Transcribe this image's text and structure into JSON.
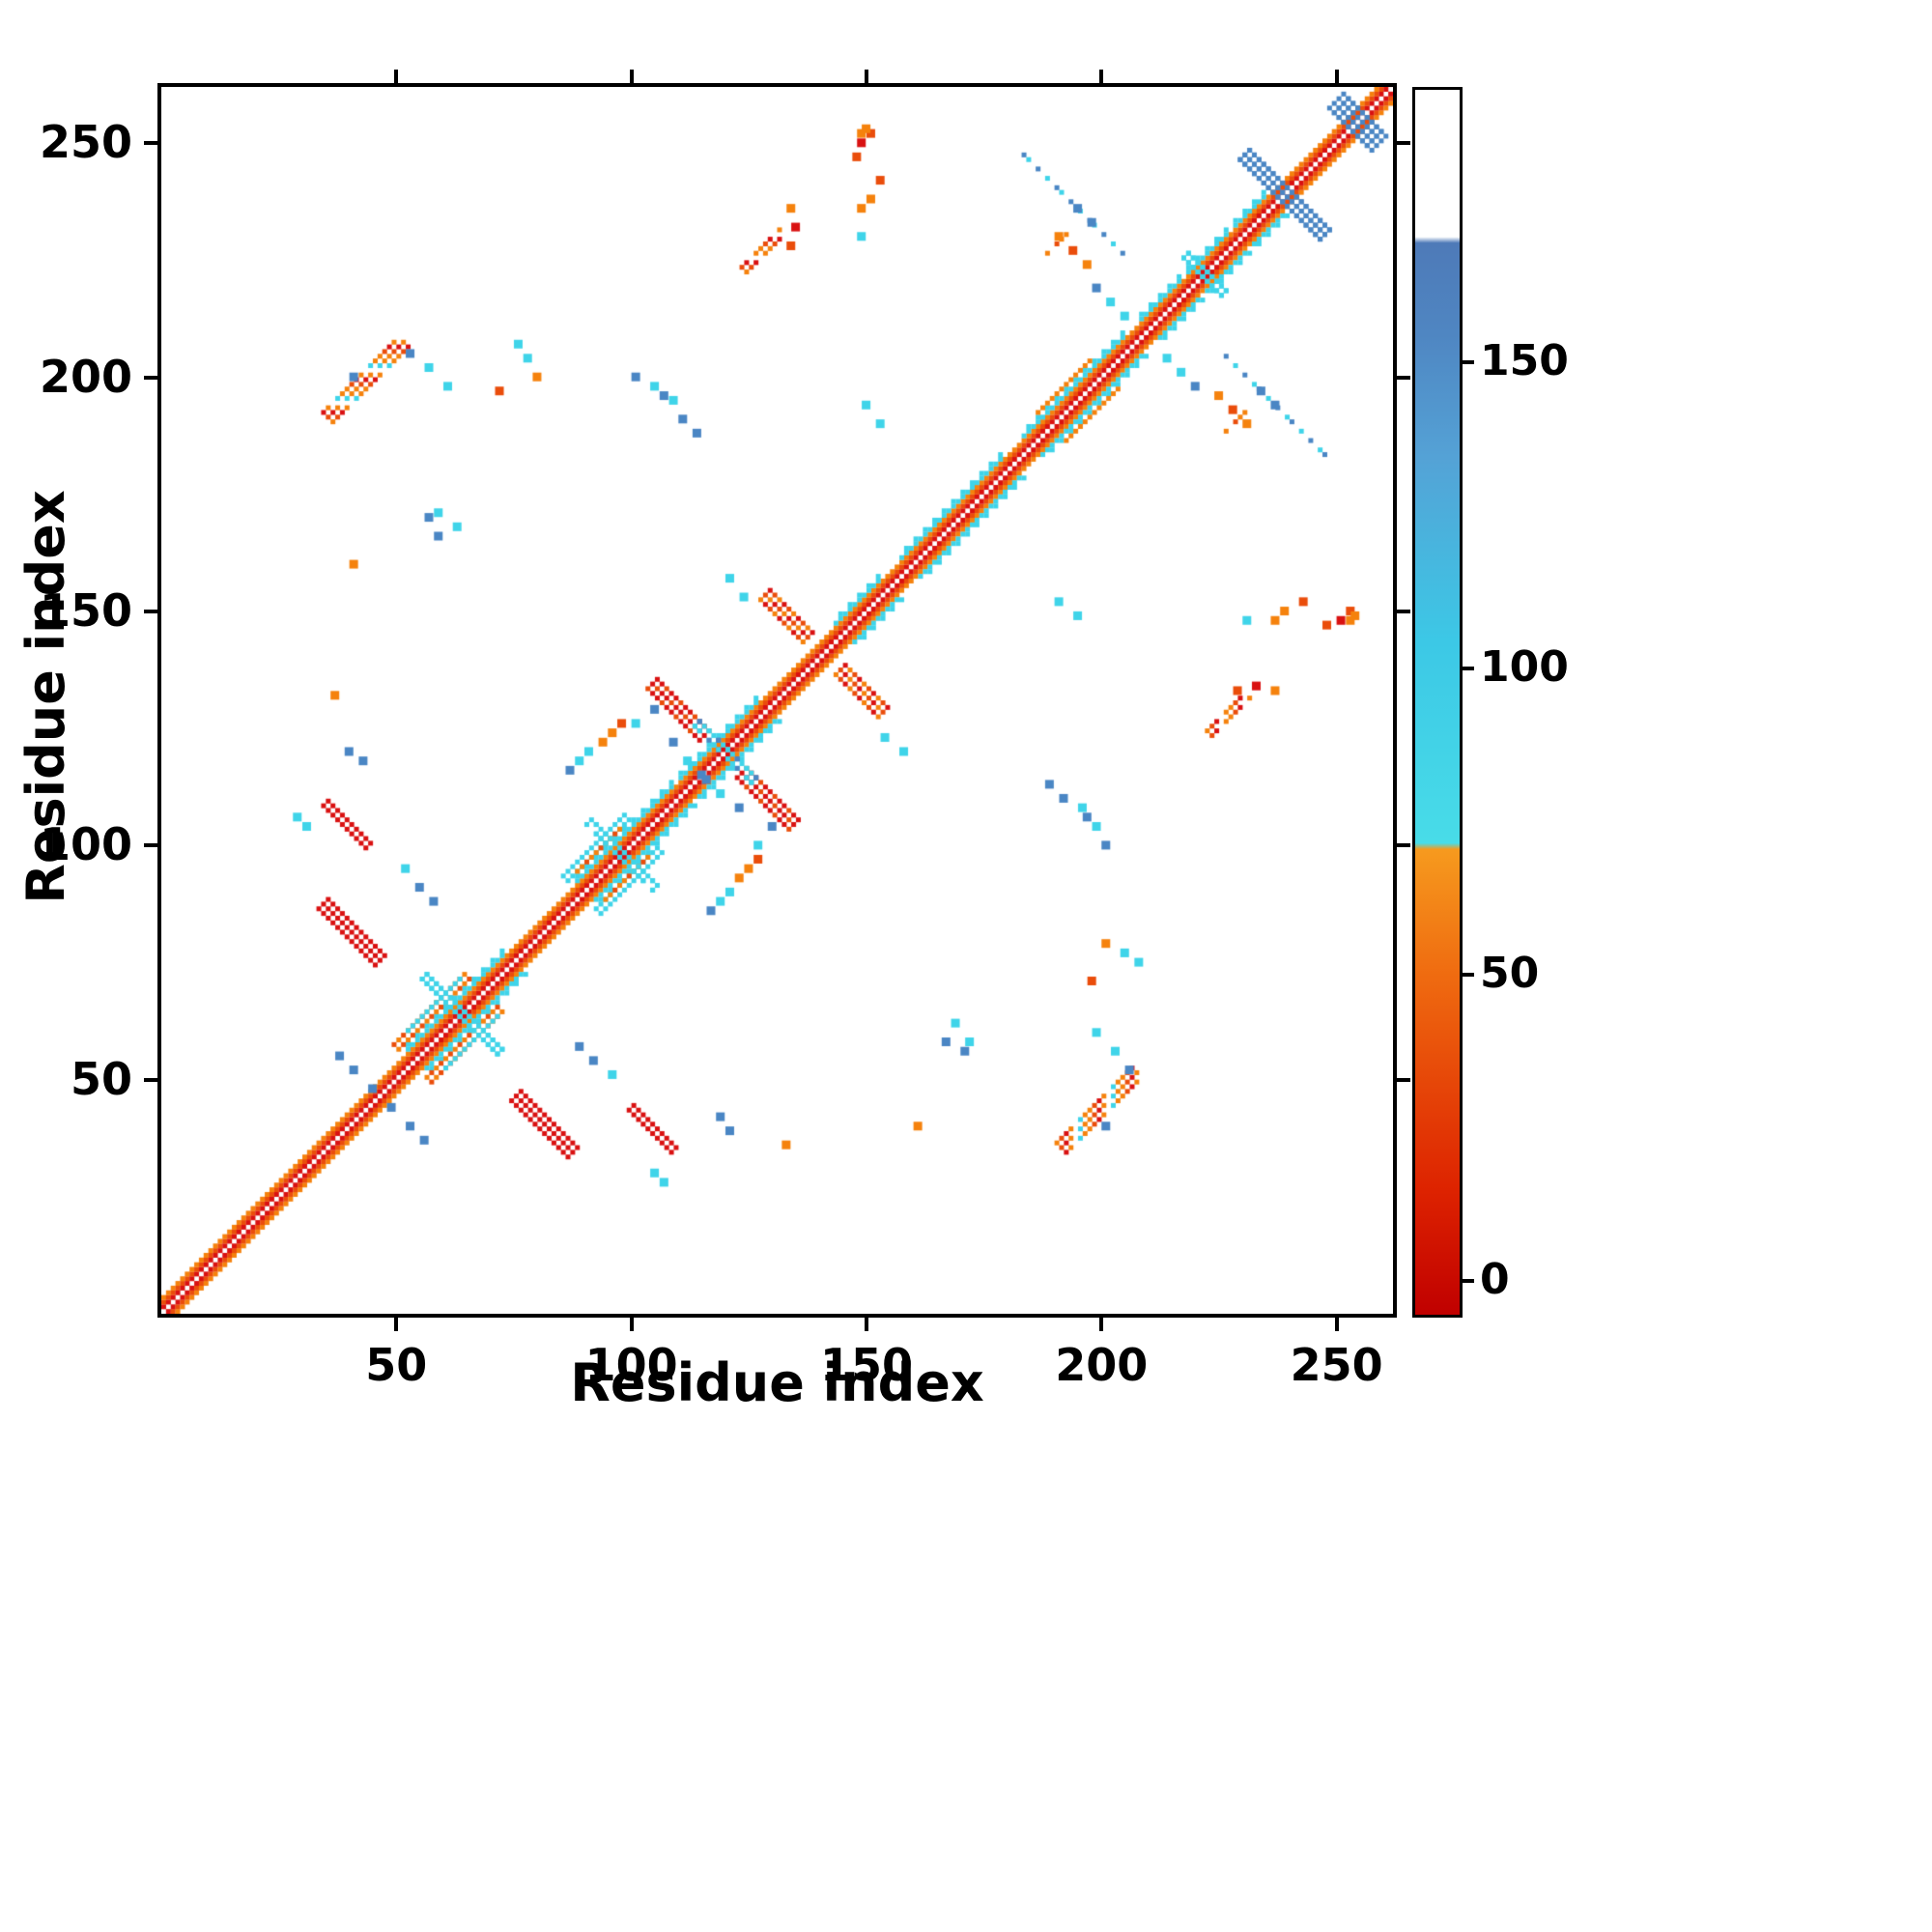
{
  "figure": {
    "xlabel": "Residue index",
    "ylabel": "Residue index"
  },
  "chart_data": {
    "type": "heatmap",
    "title": "",
    "xlabel": "Residue index",
    "ylabel": "Residue index",
    "xlim": [
      0,
      262
    ],
    "ylim": [
      0,
      262
    ],
    "xticks": [
      50,
      100,
      150,
      200,
      250
    ],
    "yticks": [
      50,
      100,
      150,
      200,
      250
    ],
    "grid": false,
    "legend_position": "colorbar-right",
    "colors": {
      "red": "#d91111",
      "redorange": "#ea4d0b",
      "orange": "#f5820d",
      "cyan": "#3fd4e9",
      "steelblue": "#4a86c4",
      "blue": "#3f6fb0"
    },
    "colorbar": {
      "range": [
        -5,
        195
      ],
      "ticks": [
        0,
        50,
        100,
        150
      ],
      "stops": [
        [
          0.0,
          "#c00000"
        ],
        [
          0.1,
          "#dd2200"
        ],
        [
          0.275,
          "#ef6a10"
        ],
        [
          0.38,
          "#f69a1e"
        ],
        [
          0.385,
          "#48dce8"
        ],
        [
          0.55,
          "#3cc8e6"
        ],
        [
          0.7,
          "#54a2d6"
        ],
        [
          0.8,
          "#4f86c2"
        ],
        [
          0.875,
          "#4e7ab8"
        ],
        [
          0.88,
          "#ffffff"
        ],
        [
          1.0,
          "#ffffff"
        ]
      ]
    },
    "features": {
      "symmetric": true,
      "diagonal": {
        "start": 0,
        "end": 261
      },
      "diagonal_cyan_flanks": [
        [
          52,
          72
        ],
        [
          88,
          108
        ],
        [
          110,
          126
        ],
        [
          143,
          152
        ],
        [
          157,
          178
        ],
        [
          183,
          204
        ],
        [
          208,
          216
        ],
        [
          218,
          226
        ],
        [
          228,
          234
        ]
      ],
      "segments": [
        {
          "type": "anti",
          "x": 74,
          "y": 45,
          "len": 13,
          "w": 3,
          "colors": [
            "red"
          ]
        },
        {
          "type": "anti",
          "x": 99,
          "y": 43,
          "len": 10,
          "w": 2,
          "colors": [
            "red"
          ]
        },
        {
          "type": "anti",
          "x": 122,
          "y": 114,
          "len": 12,
          "w": 3,
          "colors": [
            "red",
            "red",
            "redorange"
          ]
        },
        {
          "type": "anti",
          "x": 143,
          "y": 136,
          "len": 10,
          "w": 3,
          "colors": [
            "orange",
            "redorange",
            "red"
          ]
        },
        {
          "type": "diag",
          "x": 190,
          "y": 36,
          "len": 17,
          "w": 3,
          "colors": [
            "orange",
            "redorange",
            "red",
            "orange",
            null,
            "cyan",
            "orange"
          ]
        },
        {
          "type": "diag",
          "x": 56,
          "y": 50,
          "len": 16,
          "w": 2,
          "colors": [
            "orange",
            "redorange"
          ]
        },
        {
          "type": "diag",
          "x": 60,
          "y": 52,
          "len": 12,
          "w": 1,
          "colors": [
            "cyan"
          ]
        },
        {
          "type": "anti",
          "x": 55,
          "y": 71,
          "len": 17,
          "w": 2,
          "colors": [
            "cyan"
          ]
        },
        {
          "type": "diag",
          "x": 92,
          "y": 86,
          "len": 14,
          "w": 2,
          "colors": [
            "cyan"
          ]
        },
        {
          "type": "diag",
          "x": 94,
          "y": 88,
          "len": 10,
          "w": 1,
          "colors": [
            "orange",
            "orange",
            "redorange"
          ]
        },
        {
          "type": "anti",
          "x": 90,
          "y": 104,
          "len": 15,
          "w": 2,
          "colors": [
            "cyan",
            null,
            "cyan",
            "cyan"
          ]
        },
        {
          "type": "anti",
          "x": 113,
          "y": 125,
          "len": 13,
          "w": 2,
          "colors": [
            "cyan",
            "steelblue",
            null,
            "cyan"
          ]
        },
        {
          "type": "anti",
          "x": 217,
          "y": 225,
          "len": 9,
          "w": 2,
          "colors": [
            "cyan"
          ]
        },
        {
          "type": "anti",
          "x": 229,
          "y": 246,
          "len": 18,
          "w": 3,
          "colors": [
            "steelblue"
          ]
        },
        {
          "type": "anti",
          "x": 248,
          "y": 257,
          "len": 9,
          "w": 4,
          "colors": [
            "steelblue"
          ]
        },
        {
          "type": "diag",
          "x": 192,
          "y": 186,
          "len": 12,
          "w": 1,
          "colors": [
            "orange"
          ]
        },
        {
          "type": "anti",
          "x": 183,
          "y": 247,
          "len": 22,
          "w": 1,
          "colors": [
            "steelblue",
            "cyan",
            null,
            "steelblue",
            null,
            "cyan",
            null
          ]
        },
        {
          "type": "diag",
          "x": 222,
          "y": 124,
          "len": 9,
          "w": 2,
          "colors": [
            "orange",
            "redorange",
            "red",
            null,
            "orange"
          ]
        },
        {
          "type": "diag",
          "x": 226,
          "y": 188,
          "len": 6,
          "w": 1,
          "colors": [
            "orange",
            null,
            "redorange",
            "orange"
          ]
        }
      ],
      "dots": [
        [
          40,
          200,
          "steelblue"
        ],
        [
          56,
          170,
          "steelblue"
        ],
        [
          58,
          166,
          "steelblue"
        ],
        [
          75,
          207,
          "cyan"
        ],
        [
          77,
          204,
          "cyan"
        ],
        [
          79,
          200,
          "orange"
        ],
        [
          71,
          197,
          "redorange"
        ],
        [
          106,
          196,
          "steelblue"
        ],
        [
          110,
          191,
          "steelblue"
        ],
        [
          113,
          188,
          "steelblue"
        ],
        [
          120,
          157,
          "cyan"
        ],
        [
          123,
          153,
          "cyan"
        ],
        [
          86,
          116,
          "steelblue"
        ],
        [
          88,
          118,
          "cyan"
        ],
        [
          90,
          120,
          "cyan"
        ],
        [
          93,
          122,
          "orange"
        ],
        [
          95,
          124,
          "orange"
        ],
        [
          97,
          126,
          "redorange"
        ],
        [
          100,
          126,
          "cyan"
        ],
        [
          104,
          129,
          "steelblue"
        ],
        [
          108,
          122,
          "steelblue"
        ],
        [
          111,
          118,
          "cyan"
        ],
        [
          114,
          115,
          "steelblue"
        ],
        [
          36,
          132,
          "orange"
        ],
        [
          48,
          44,
          "steelblue"
        ],
        [
          52,
          40,
          "steelblue"
        ],
        [
          55,
          37,
          "steelblue"
        ],
        [
          88,
          57,
          "steelblue"
        ],
        [
          91,
          54,
          "steelblue"
        ],
        [
          95,
          51,
          "cyan"
        ],
        [
          104,
          30,
          "cyan"
        ],
        [
          106,
          28,
          "cyan"
        ],
        [
          118,
          42,
          "steelblue"
        ],
        [
          120,
          39,
          "steelblue"
        ],
        [
          160,
          40,
          "orange"
        ],
        [
          168,
          62,
          "cyan"
        ],
        [
          171,
          58,
          "cyan"
        ],
        [
          198,
          60,
          "cyan"
        ],
        [
          202,
          56,
          "cyan"
        ],
        [
          205,
          52,
          "steelblue"
        ],
        [
          195,
          108,
          "cyan"
        ],
        [
          198,
          104,
          "cyan"
        ],
        [
          200,
          100,
          "steelblue"
        ],
        [
          230,
          148,
          "cyan"
        ],
        [
          236,
          148,
          "orange"
        ],
        [
          250,
          148,
          "red"
        ],
        [
          252,
          150,
          "redorange"
        ],
        [
          253,
          149,
          "orange"
        ],
        [
          190,
          152,
          "cyan"
        ],
        [
          194,
          149,
          "cyan"
        ],
        [
          213,
          204,
          "cyan"
        ],
        [
          216,
          201,
          "cyan"
        ],
        [
          219,
          198,
          "steelblue"
        ],
        [
          224,
          196,
          "orange"
        ],
        [
          227,
          193,
          "redorange"
        ],
        [
          230,
          190,
          "orange"
        ],
        [
          233,
          197,
          "steelblue"
        ],
        [
          236,
          194,
          "steelblue"
        ],
        [
          150,
          238,
          "orange"
        ],
        [
          152,
          242,
          "redorange"
        ],
        [
          133,
          228,
          "redorange"
        ],
        [
          134,
          232,
          "red"
        ],
        [
          133,
          236,
          "orange"
        ],
        [
          148,
          252,
          "orange"
        ],
        [
          147,
          247,
          "redorange"
        ]
      ]
    }
  }
}
